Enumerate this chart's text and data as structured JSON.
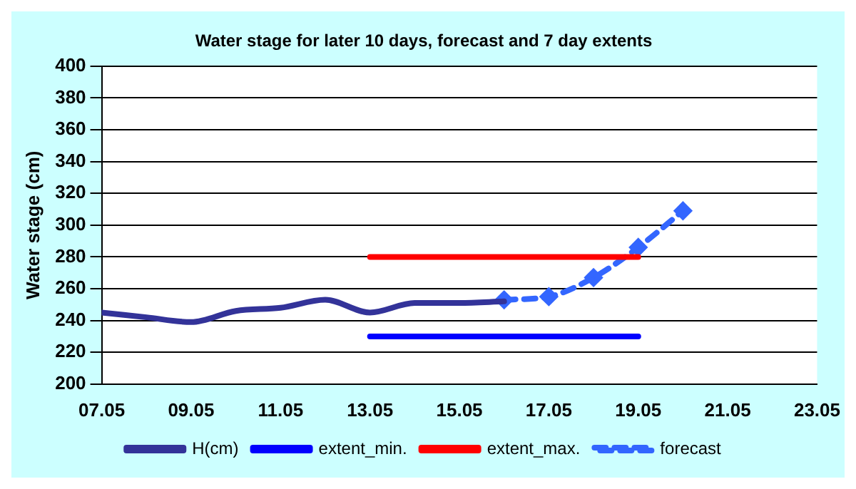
{
  "chart_data": {
    "type": "line",
    "title": "Water stage for later 10 days, forecast and 7 day extents",
    "ylabel": "Water stage (cm)",
    "xlim": [
      "--05-07",
      "--05-23"
    ],
    "xticks": [
      {
        "value": "--05-07",
        "label": "07.05"
      },
      {
        "value": "--05-09",
        "label": "09.05"
      },
      {
        "value": "--05-11",
        "label": "11.05"
      },
      {
        "value": "--05-13",
        "label": "13.05"
      },
      {
        "value": "--05-15",
        "label": "15.05"
      },
      {
        "value": "--05-17",
        "label": "17.05"
      },
      {
        "value": "--05-19",
        "label": "19.05"
      },
      {
        "value": "--05-21",
        "label": "21.05"
      },
      {
        "value": "--05-23",
        "label": "23.05"
      }
    ],
    "ylim": [
      200,
      400
    ],
    "yticks": [
      200,
      220,
      240,
      260,
      280,
      300,
      320,
      340,
      360,
      380,
      400
    ],
    "grid": "y",
    "legend": "bottom",
    "series": [
      {
        "name": "H(cm)",
        "color": "#333399",
        "x": [
          "--05-07",
          "--05-08",
          "--05-09",
          "--05-10",
          "--05-11",
          "--05-12",
          "--05-13",
          "--05-14",
          "--05-15",
          "--05-16"
        ],
        "values": [
          245,
          242,
          239,
          246,
          248,
          253,
          245,
          251,
          251,
          252
        ],
        "marker": "none",
        "line_style": "solid"
      },
      {
        "name": "extent_min.",
        "color": "#0000ff",
        "x": [
          "--05-13",
          "--05-19"
        ],
        "values": [
          230,
          230
        ],
        "marker": "none",
        "line_style": "solid"
      },
      {
        "name": "extent_max.",
        "color": "#ff0000",
        "x": [
          "--05-13",
          "--05-19"
        ],
        "values": [
          280,
          280
        ],
        "marker": "none",
        "line_style": "solid"
      },
      {
        "name": "forecast",
        "color": "#3366ff",
        "x": [
          "--05-16",
          "--05-17",
          "--05-18",
          "--05-19",
          "--05-20"
        ],
        "values": [
          253,
          255,
          267,
          286,
          309
        ],
        "marker": "diamond",
        "line_style": "dashed"
      }
    ]
  }
}
